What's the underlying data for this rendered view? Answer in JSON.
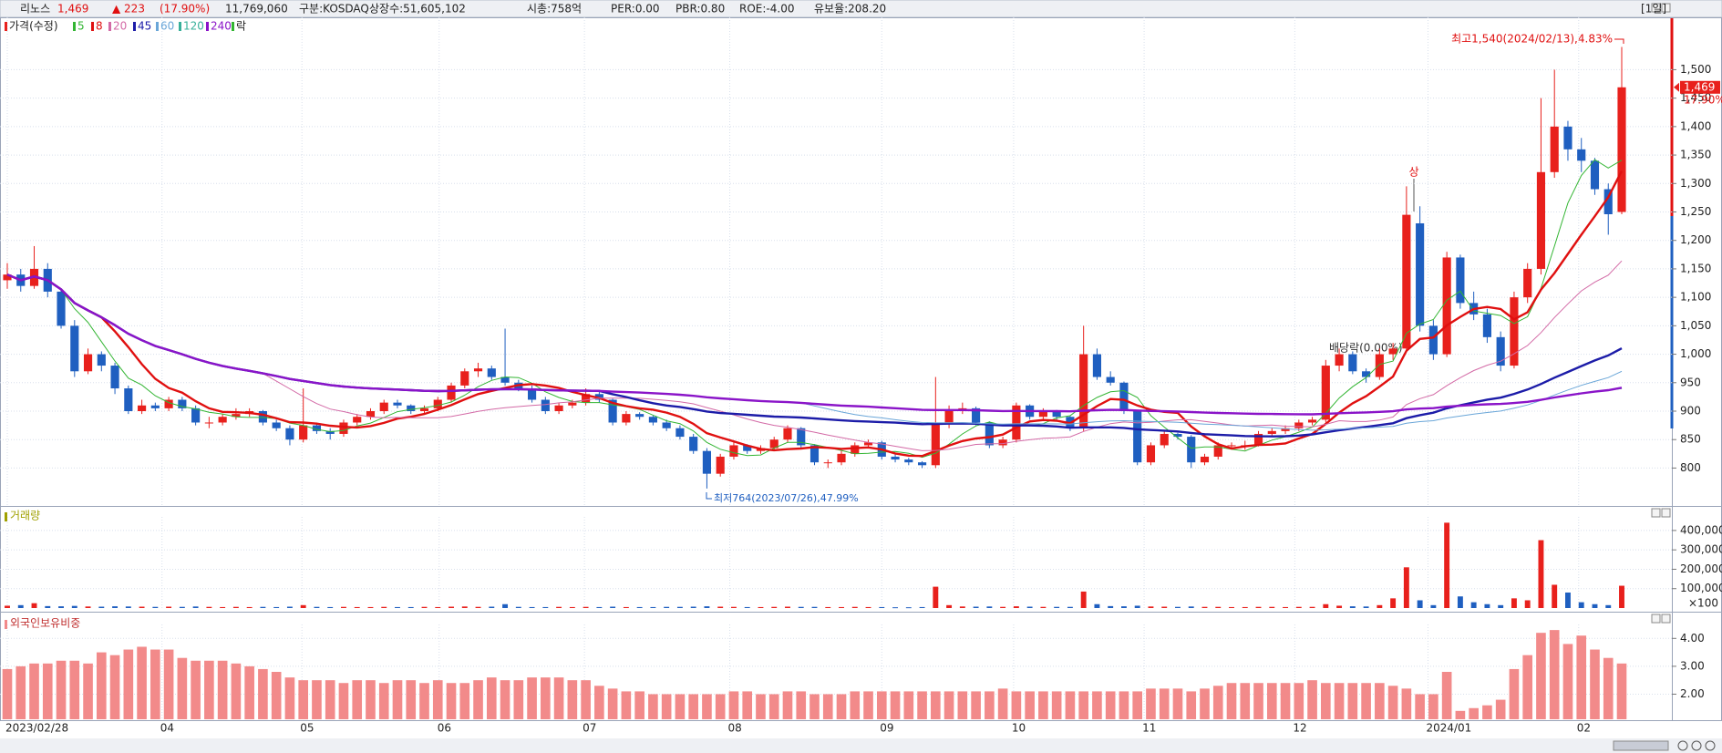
{
  "header": {
    "name": "리노스",
    "price": "1,469",
    "change": "▲ 223",
    "change_pct": "(17.90%)",
    "volume": "11,769,060",
    "market": "구분:KOSDAQ",
    "listed": "상장수:51,605,102",
    "market_cap": "시총:758억",
    "per": "PER:0.00",
    "pbr": "PBR:0.80",
    "roe": "ROE:-4.00",
    "reserve": "유보율:208.20",
    "period": "[1일]"
  },
  "chart_data": [
    {
      "type": "candlestick",
      "legend_title": "가격(수정)",
      "marker_label": "락",
      "up_color": "#e8201c",
      "down_color": "#1f5fc0",
      "series": [
        {
          "name": "5",
          "color": "#33b533"
        },
        {
          "name": "8",
          "color": "#e01010",
          "bold": true
        },
        {
          "name": "20",
          "color": "#d36aa6"
        },
        {
          "name": "45",
          "color": "#1c1ca8",
          "bold": true
        },
        {
          "name": "60",
          "color": "#6aa6d8"
        },
        {
          "name": "120",
          "color": "#38b09a"
        },
        {
          "name": "240",
          "color": "#8a14c8",
          "bold": true
        }
      ],
      "values": [
        [
          1130,
          1160,
          1115,
          1140
        ],
        [
          1140,
          1150,
          1110,
          1120
        ],
        [
          1120,
          1190,
          1115,
          1150
        ],
        [
          1150,
          1160,
          1100,
          1110
        ],
        [
          1110,
          1115,
          1045,
          1050
        ],
        [
          1050,
          1060,
          960,
          970
        ],
        [
          970,
          1010,
          965,
          1000
        ],
        [
          1000,
          1005,
          970,
          980
        ],
        [
          980,
          985,
          930,
          940
        ],
        [
          940,
          945,
          895,
          900
        ],
        [
          900,
          920,
          895,
          910
        ],
        [
          910,
          915,
          900,
          905
        ],
        [
          905,
          925,
          900,
          920
        ],
        [
          920,
          925,
          900,
          905
        ],
        [
          905,
          910,
          875,
          880
        ],
        [
          880,
          890,
          870,
          880
        ],
        [
          880,
          895,
          875,
          890
        ],
        [
          890,
          905,
          885,
          895
        ],
        [
          895,
          905,
          890,
          900
        ],
        [
          900,
          902,
          875,
          880
        ],
        [
          880,
          885,
          865,
          870
        ],
        [
          870,
          875,
          840,
          850
        ],
        [
          850,
          940,
          845,
          875
        ],
        [
          875,
          880,
          860,
          865
        ],
        [
          865,
          870,
          850,
          860
        ],
        [
          860,
          885,
          855,
          880
        ],
        [
          880,
          895,
          875,
          890
        ],
        [
          890,
          905,
          885,
          900
        ],
        [
          900,
          920,
          895,
          915
        ],
        [
          915,
          920,
          905,
          910
        ],
        [
          910,
          912,
          895,
          900
        ],
        [
          900,
          910,
          895,
          905
        ],
        [
          905,
          925,
          900,
          920
        ],
        [
          920,
          950,
          915,
          945
        ],
        [
          945,
          975,
          940,
          970
        ],
        [
          970,
          985,
          960,
          975
        ],
        [
          975,
          980,
          955,
          960
        ],
        [
          960,
          1045,
          945,
          950
        ],
        [
          950,
          955,
          935,
          940
        ],
        [
          940,
          945,
          915,
          920
        ],
        [
          920,
          925,
          895,
          900
        ],
        [
          900,
          915,
          895,
          910
        ],
        [
          910,
          920,
          905,
          915
        ],
        [
          915,
          940,
          910,
          930
        ],
        [
          930,
          935,
          915,
          920
        ],
        [
          920,
          922,
          875,
          880
        ],
        [
          880,
          900,
          875,
          895
        ],
        [
          895,
          898,
          885,
          890
        ],
        [
          890,
          892,
          875,
          880
        ],
        [
          880,
          885,
          865,
          870
        ],
        [
          870,
          875,
          850,
          855
        ],
        [
          855,
          860,
          825,
          830
        ],
        [
          830,
          835,
          764,
          790
        ],
        [
          790,
          825,
          785,
          820
        ],
        [
          820,
          845,
          815,
          840
        ],
        [
          840,
          842,
          825,
          830
        ],
        [
          830,
          840,
          825,
          835
        ],
        [
          835,
          855,
          830,
          850
        ],
        [
          850,
          875,
          845,
          870
        ],
        [
          870,
          872,
          835,
          840
        ],
        [
          840,
          842,
          805,
          810
        ],
        [
          810,
          815,
          800,
          810
        ],
        [
          810,
          830,
          805,
          825
        ],
        [
          825,
          845,
          820,
          840
        ],
        [
          840,
          850,
          835,
          845
        ],
        [
          845,
          848,
          815,
          820
        ],
        [
          820,
          825,
          810,
          815
        ],
        [
          815,
          818,
          805,
          810
        ],
        [
          810,
          812,
          800,
          805
        ],
        [
          805,
          960,
          800,
          880
        ],
        [
          880,
          910,
          870,
          900
        ],
        [
          900,
          915,
          895,
          905
        ],
        [
          905,
          908,
          875,
          880
        ],
        [
          880,
          882,
          835,
          840
        ],
        [
          840,
          855,
          835,
          850
        ],
        [
          850,
          915,
          845,
          910
        ],
        [
          910,
          912,
          885,
          890
        ],
        [
          890,
          905,
          885,
          900
        ],
        [
          900,
          902,
          885,
          890
        ],
        [
          890,
          892,
          865,
          870
        ],
        [
          870,
          1050,
          865,
          1000
        ],
        [
          1000,
          1010,
          955,
          960
        ],
        [
          960,
          970,
          945,
          950
        ],
        [
          950,
          952,
          895,
          900
        ],
        [
          900,
          902,
          805,
          810
        ],
        [
          810,
          845,
          805,
          840
        ],
        [
          840,
          865,
          835,
          860
        ],
        [
          860,
          862,
          850,
          855
        ],
        [
          855,
          858,
          800,
          810
        ],
        [
          810,
          825,
          805,
          820
        ],
        [
          820,
          845,
          815,
          840
        ],
        [
          840,
          845,
          835,
          840
        ],
        [
          840,
          848,
          832,
          840
        ],
        [
          840,
          865,
          838,
          860
        ],
        [
          860,
          870,
          855,
          865
        ],
        [
          865,
          875,
          860,
          870
        ],
        [
          870,
          885,
          865,
          880
        ],
        [
          880,
          890,
          875,
          885
        ],
        [
          885,
          990,
          880,
          980
        ],
        [
          980,
          1010,
          970,
          1000
        ],
        [
          1000,
          1005,
          965,
          970
        ],
        [
          970,
          975,
          950,
          960
        ],
        [
          960,
          1010,
          955,
          1000
        ],
        [
          1000,
          1020,
          990,
          1010
        ],
        [
          1010,
          1295,
          1005,
          1245
        ],
        [
          1230,
          1260,
          1040,
          1050
        ],
        [
          1050,
          1060,
          990,
          1000
        ],
        [
          1000,
          1180,
          995,
          1170
        ],
        [
          1170,
          1175,
          1080,
          1090
        ],
        [
          1090,
          1110,
          1060,
          1070
        ],
        [
          1070,
          1080,
          1020,
          1030
        ],
        [
          1030,
          1040,
          970,
          980
        ],
        [
          980,
          1110,
          975,
          1100
        ],
        [
          1100,
          1160,
          1090,
          1150
        ],
        [
          1150,
          1450,
          1140,
          1320
        ],
        [
          1320,
          1500,
          1310,
          1400
        ],
        [
          1400,
          1410,
          1340,
          1360
        ],
        [
          1360,
          1380,
          1320,
          1340
        ],
        [
          1340,
          1345,
          1280,
          1290
        ],
        [
          1290,
          1300,
          1210,
          1246
        ],
        [
          1250,
          1540,
          1246,
          1469
        ]
      ],
      "ylim": [
        735,
        1592
      ],
      "yticks": [
        {
          "value": 800,
          "label": "800"
        },
        {
          "value": 850,
          "label": "850"
        },
        {
          "value": 900,
          "label": "900"
        },
        {
          "value": 950,
          "label": "950"
        },
        {
          "value": 1000,
          "label": "1,000"
        },
        {
          "value": 1050,
          "label": "1,050"
        },
        {
          "value": 1100,
          "label": "1,100"
        },
        {
          "value": 1150,
          "label": "1,150"
        },
        {
          "value": 1200,
          "label": "1,200"
        },
        {
          "value": 1250,
          "label": "1,250"
        },
        {
          "value": 1300,
          "label": "1,300"
        },
        {
          "value": 1350,
          "label": "1,350"
        },
        {
          "value": 1400,
          "label": "1,400"
        },
        {
          "value": 1450,
          "label": "1,450"
        },
        {
          "value": 1500,
          "label": "1,500"
        }
      ],
      "xticks": [
        {
          "value": 0,
          "label": "2023/02/28"
        },
        {
          "value": 11.5,
          "label": "04"
        },
        {
          "value": 21.9,
          "label": "05"
        },
        {
          "value": 32.1,
          "label": "06"
        },
        {
          "value": 42.9,
          "label": "07"
        },
        {
          "value": 53.7,
          "label": "08"
        },
        {
          "value": 65,
          "label": "09"
        },
        {
          "value": 74.8,
          "label": "10"
        },
        {
          "value": 84.5,
          "label": "11"
        },
        {
          "value": 95.7,
          "label": "12"
        },
        {
          "value": 105.6,
          "label": "2024/01"
        },
        {
          "value": 116.8,
          "label": "02"
        }
      ],
      "grid": true,
      "annotations": {
        "high": "최고1,540(2024/02/13),4.83%",
        "low": "최저764(2023/07/26),47.99%",
        "limit_up": "상",
        "ex_dividend": "배당락(0.00%)"
      },
      "last_value_label": "1,469",
      "last_change_label": "17.90%"
    },
    {
      "type": "bar",
      "title": "거래량",
      "unit_label": "×100",
      "values": [
        12000,
        15000,
        25000,
        10000,
        9000,
        11000,
        8000,
        7000,
        9000,
        8000,
        7000,
        6000,
        7000,
        6000,
        8000,
        6000,
        5000,
        6000,
        5000,
        6000,
        5000,
        7000,
        15000,
        6000,
        5000,
        6000,
        5000,
        5000,
        6000,
        5000,
        5000,
        6000,
        5000,
        7000,
        8000,
        6000,
        7000,
        20000,
        6000,
        5000,
        5000,
        6000,
        5000,
        6000,
        5000,
        7000,
        5000,
        5000,
        5000,
        6000,
        6000,
        7000,
        9000,
        7000,
        6000,
        5000,
        5000,
        6000,
        7000,
        6000,
        6000,
        5000,
        5000,
        6000,
        5000,
        5000,
        4000,
        4000,
        5000,
        110000,
        15000,
        8000,
        7000,
        8000,
        6000,
        9000,
        7000,
        6000,
        6000,
        6000,
        85000,
        20000,
        10000,
        9000,
        12000,
        8000,
        7000,
        6000,
        8000,
        6000,
        6000,
        5000,
        5000,
        6000,
        6000,
        5000,
        6000,
        6000,
        20000,
        12000,
        9000,
        8000,
        15000,
        50000,
        210000,
        40000,
        15000,
        440000,
        60000,
        30000,
        20000,
        15000,
        50000,
        40000,
        350000,
        120000,
        80000,
        30000,
        20000,
        15000,
        115000
      ],
      "ylim": [
        0,
        470000
      ],
      "yticks": [
        {
          "value": 100000,
          "label": "100,000"
        },
        {
          "value": 200000,
          "label": "200,000"
        },
        {
          "value": 300000,
          "label": "300,000"
        },
        {
          "value": 400000,
          "label": "400,000"
        }
      ]
    },
    {
      "type": "bar",
      "title": "외국인보유비중",
      "color": "#f28a8a",
      "values": [
        2.9,
        3.0,
        3.1,
        3.1,
        3.2,
        3.2,
        3.1,
        3.5,
        3.4,
        3.6,
        3.7,
        3.6,
        3.6,
        3.3,
        3.2,
        3.2,
        3.2,
        3.1,
        3.0,
        2.9,
        2.8,
        2.6,
        2.5,
        2.5,
        2.5,
        2.4,
        2.5,
        2.5,
        2.4,
        2.5,
        2.5,
        2.4,
        2.5,
        2.4,
        2.4,
        2.5,
        2.6,
        2.5,
        2.5,
        2.6,
        2.6,
        2.6,
        2.5,
        2.5,
        2.3,
        2.2,
        2.1,
        2.1,
        2.0,
        2.0,
        2.0,
        2.0,
        2.0,
        2.0,
        2.1,
        2.1,
        2.0,
        2.0,
        2.1,
        2.1,
        2.0,
        2.0,
        2.0,
        2.1,
        2.1,
        2.1,
        2.1,
        2.1,
        2.1,
        2.1,
        2.1,
        2.1,
        2.1,
        2.1,
        2.2,
        2.1,
        2.1,
        2.1,
        2.1,
        2.1,
        2.1,
        2.1,
        2.1,
        2.1,
        2.1,
        2.2,
        2.2,
        2.2,
        2.1,
        2.2,
        2.3,
        2.4,
        2.4,
        2.4,
        2.4,
        2.4,
        2.4,
        2.5,
        2.4,
        2.4,
        2.4,
        2.4,
        2.4,
        2.3,
        2.2,
        2.0,
        2.0,
        2.8,
        1.4,
        1.5,
        1.6,
        1.8,
        2.9,
        3.4,
        4.2,
        4.3,
        3.8,
        4.1,
        3.6,
        3.3,
        3.1
      ],
      "ylim": [
        1.1,
        4.5
      ],
      "yticks": [
        {
          "value": 2,
          "label": "2.00"
        },
        {
          "value": 3,
          "label": "3.00"
        },
        {
          "value": 4,
          "label": "4.00"
        }
      ]
    }
  ]
}
